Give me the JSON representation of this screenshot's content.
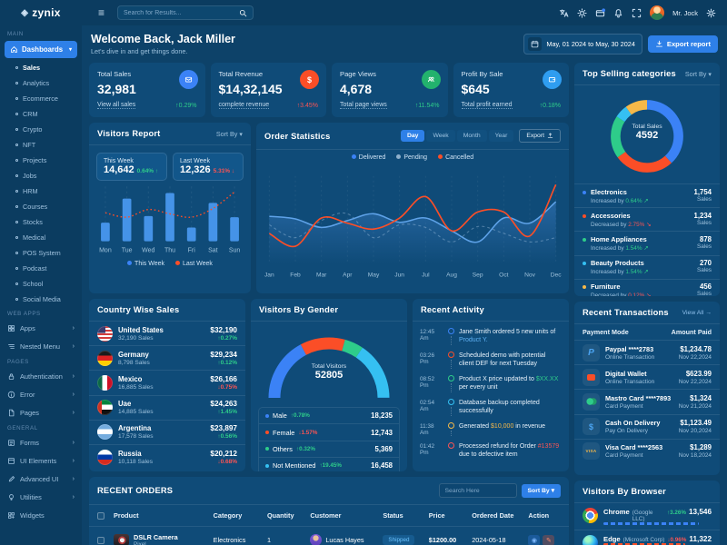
{
  "colors": {
    "blue": "#3b82f6",
    "bar": "#4593e8",
    "line_blue": "#5ea2e8",
    "orange": "#fb4e27",
    "green": "#2ecc8a",
    "red": "#fb5454",
    "amber": "#f5b849",
    "sky": "#35c0f2",
    "pending": "rgba(190,215,240,0.35)"
  },
  "topbar": {
    "brand": "zynix",
    "search_placeholder": "Search for Results...",
    "user_name": "Mr. Jock"
  },
  "sidebar": {
    "sections": {
      "main_label": "MAIN",
      "webapps_label": "WEB APPS",
      "pages_label": "PAGES",
      "general_label": "GENERAL"
    },
    "dashboards_label": "Dashboards",
    "dash_items": [
      "Sales",
      "Analytics",
      "Ecommerce",
      "CRM",
      "Crypto",
      "NFT",
      "Projects",
      "Jobs",
      "HRM",
      "Courses",
      "Stocks",
      "Medical",
      "POS System",
      "Podcast",
      "School",
      "Social Media"
    ],
    "webapps": [
      {
        "label": "Apps"
      },
      {
        "label": "Nested Menu"
      }
    ],
    "pages": [
      {
        "label": "Authentication"
      },
      {
        "label": "Error"
      },
      {
        "label": "Pages"
      }
    ],
    "general": [
      {
        "label": "Forms"
      },
      {
        "label": "UI Elements"
      },
      {
        "label": "Advanced UI"
      },
      {
        "label": "Utilities"
      },
      {
        "label": "Widgets"
      }
    ]
  },
  "header": {
    "title": "Welcome Back, Jack Miller",
    "subtitle": "Let's dive in and get things done.",
    "date_range": "May, 01 2024 to May, 30 2024",
    "export_label": "Export report"
  },
  "kpis": [
    {
      "label": "Total Sales",
      "value": "32,981",
      "link": "View all sales",
      "arrow": "↑",
      "pct": "0.29%",
      "tone": "green"
    },
    {
      "label": "Total Revenue",
      "value": "$14,32,145",
      "link": "complete revenue",
      "arrow": "↑",
      "pct": "3.45%",
      "tone": "red"
    },
    {
      "label": "Page Views",
      "value": "4,678",
      "link": "Total page views",
      "arrow": "↑",
      "pct": "11.54%",
      "tone": "green"
    },
    {
      "label": "Profit By Sale",
      "value": "$645",
      "link": "Total profit earned",
      "arrow": "↑",
      "pct": "0.18%",
      "tone": "green"
    }
  ],
  "visitors_report": {
    "title": "Visitors Report",
    "sort_label": "Sort By",
    "stats": [
      {
        "label": "This Week",
        "value": "14,642",
        "pct": "0.64%",
        "arrow": "↑",
        "tone": "green"
      },
      {
        "label": "Last Week",
        "value": "12,326",
        "pct": "5.31%",
        "arrow": "↓",
        "tone": "red"
      }
    ],
    "legend": [
      "This Week",
      "Last Week"
    ],
    "chart": {
      "type": "bar+line",
      "categories": [
        "Mon",
        "Tue",
        "Wed",
        "Thu",
        "Fri",
        "Sat",
        "Sun"
      ],
      "series": [
        {
          "name": "This Week",
          "type": "bar",
          "values": [
            34,
            78,
            46,
            88,
            25,
            70,
            44
          ]
        },
        {
          "name": "Last Week",
          "type": "line",
          "values": [
            52,
            44,
            58,
            50,
            44,
            60,
            90
          ]
        }
      ]
    }
  },
  "order_statistics": {
    "title": "Order Statistics",
    "ranges": [
      "Day",
      "Week",
      "Month",
      "Year"
    ],
    "active_range": "Day",
    "export_label": "Export",
    "legend": [
      "Delivered",
      "Pending",
      "Cancelled"
    ],
    "chart": {
      "type": "area-line",
      "categories": [
        "Jan",
        "Feb",
        "Mar",
        "Apr",
        "May",
        "Jun",
        "Jul",
        "Aug",
        "Sep",
        "Oct",
        "Nov",
        "Dec"
      ],
      "series": [
        {
          "name": "Delivered",
          "values": [
            55,
            52,
            42,
            50,
            58,
            48,
            53,
            38,
            25,
            53,
            47,
            72
          ]
        },
        {
          "name": "Pending",
          "values": [
            45,
            30,
            50,
            58,
            30,
            45,
            42,
            25,
            43,
            35,
            25,
            30
          ]
        },
        {
          "name": "Cancelled",
          "values": [
            35,
            20,
            53,
            47,
            40,
            53,
            78,
            38,
            60,
            60,
            32,
            92
          ]
        }
      ]
    }
  },
  "top_selling": {
    "title": "Top Selling categories",
    "sort_label": "Sort By",
    "center_label": "Total Sales",
    "center_value": "4592",
    "items": [
      {
        "name": "Electronics",
        "change_label": "Increased by",
        "pct": "0.64%",
        "tone": "green",
        "value": "1,754",
        "unit": "Sales"
      },
      {
        "name": "Accessories",
        "change_label": "Decreased by",
        "pct": "2.75%",
        "tone": "red",
        "value": "1,234",
        "unit": "Sales"
      },
      {
        "name": "Home Appliances",
        "change_label": "Increased by",
        "pct": "1.54%",
        "tone": "green",
        "value": "878",
        "unit": "Sales"
      },
      {
        "name": "Beauty Products",
        "change_label": "Increased by",
        "pct": "1.54%",
        "tone": "green",
        "value": "270",
        "unit": "Sales"
      },
      {
        "name": "Furniture",
        "change_label": "Decreased by",
        "pct": "0.12%",
        "tone": "red",
        "value": "456",
        "unit": "Sales"
      }
    ],
    "chart": {
      "type": "donut",
      "values": [
        1754,
        1234,
        878,
        270,
        456
      ]
    }
  },
  "country_sales": {
    "title": "Country Wise Sales",
    "items": [
      {
        "country": "United States",
        "sales": "32,190 Sales",
        "amount": "$32,190",
        "arrow": "↑",
        "pct": "0.27%",
        "tone": "green"
      },
      {
        "country": "Germany",
        "sales": "8,798 Sales",
        "amount": "$29,234",
        "arrow": "↑",
        "pct": "0.12%",
        "tone": "green"
      },
      {
        "country": "Mexico",
        "sales": "16,885 Sales",
        "amount": "$26,166",
        "arrow": "↓",
        "pct": "0.75%",
        "tone": "red"
      },
      {
        "country": "Uae",
        "sales": "14,885 Sales",
        "amount": "$24,263",
        "arrow": "↑",
        "pct": "1.45%",
        "tone": "green"
      },
      {
        "country": "Argentina",
        "sales": "17,578 Sales",
        "amount": "$23,897",
        "arrow": "↑",
        "pct": "0.56%",
        "tone": "green"
      },
      {
        "country": "Russia",
        "sales": "10,118 Sales",
        "amount": "$20,212",
        "arrow": "↓",
        "pct": "0.68%",
        "tone": "red"
      }
    ]
  },
  "gender": {
    "title": "Visitors By Gender",
    "center_label": "Total Visitors",
    "center_value": "52805",
    "items": [
      {
        "label": "Male",
        "arrow": "↑",
        "pct": "0.78%",
        "tone": "green",
        "value": "18,235"
      },
      {
        "label": "Female",
        "arrow": "↓",
        "pct": "1.57%",
        "tone": "red",
        "value": "12,743"
      },
      {
        "label": "Others",
        "arrow": "↑",
        "pct": "0.32%",
        "tone": "green",
        "value": "5,369"
      },
      {
        "label": "Not Mentioned",
        "arrow": "↑",
        "pct": "19.45%",
        "tone": "green",
        "value": "16,458"
      }
    ],
    "chart": {
      "type": "gauge",
      "values": [
        18235,
        12743,
        5369,
        16458
      ]
    }
  },
  "activity": {
    "title": "Recent Activity",
    "items": [
      {
        "time": "12:45 Am",
        "pre": "Jane Smith ordered 5 new units of ",
        "hl": "Product Y.",
        "post": ""
      },
      {
        "time": "03:26 Pm",
        "pre": "Scheduled demo with potential client DEF for next Tuesday",
        "hl": "",
        "post": ""
      },
      {
        "time": "08:52 Pm",
        "pre": "Product X price updated to ",
        "hl": "$XX.XX",
        "post": " per every unit"
      },
      {
        "time": "02:54 Am",
        "pre": "Database backup completed successfully",
        "hl": "",
        "post": ""
      },
      {
        "time": "11:38 Am",
        "pre": "Generated ",
        "hl": "$10,000",
        "post": " in revenue"
      },
      {
        "time": "01:42 Pm",
        "pre": "Processed refund for Order ",
        "hl": "#13579",
        "post": " due to defective item"
      }
    ]
  },
  "transactions": {
    "title": "Recent Transactions",
    "view_all": "View All →",
    "columns": {
      "mode": "Payment Mode",
      "amount": "Amount Paid"
    },
    "items": [
      {
        "mode": "Paypal ****2783",
        "sub": "Online Transaction",
        "amount": "$1,234.78",
        "date": "Nov 22,2024"
      },
      {
        "mode": "Digital Wallet",
        "sub": "Online Transaction",
        "amount": "$623.99",
        "date": "Nov 22,2024"
      },
      {
        "mode": "Mastro Card ****7893",
        "sub": "Card Payment",
        "amount": "$1,324",
        "date": "Nov 21,2024"
      },
      {
        "mode": "Cash On Delivery",
        "sub": "Pay On Delivery",
        "amount": "$1,123.49",
        "date": "Nov 20,2024"
      },
      {
        "mode": "Visa Card ****2563",
        "sub": "Card Payment",
        "amount": "$1,289",
        "date": "Nov 18,2024"
      }
    ]
  },
  "orders": {
    "title": "RECENT ORDERS",
    "search_placeholder": "Search Here",
    "sort_label": "Sort By",
    "columns": [
      "Product",
      "Category",
      "Quantity",
      "Customer",
      "Status",
      "Price",
      "Ordered Date",
      "Action"
    ],
    "rows": [
      {
        "product": "DSLR Camera",
        "variant": "Pixel",
        "category": "Electronics",
        "quantity": "1",
        "customer": "Lucas Hayes",
        "status": "Shipped",
        "price": "$1200.00",
        "date": "2024-05-18"
      }
    ]
  },
  "browser": {
    "title": "Visitors By Browser",
    "items": [
      {
        "name": "Chrome",
        "company": "(Google LLC)",
        "arrow": "↑",
        "pct": "3.26%",
        "tone": "green",
        "value": "13,546",
        "bar": 88
      },
      {
        "name": "Edge",
        "company": "(Microsoft Corp)",
        "arrow": "↓",
        "pct": "0.96%",
        "tone": "red",
        "value": "11,322",
        "bar": 76
      }
    ]
  }
}
